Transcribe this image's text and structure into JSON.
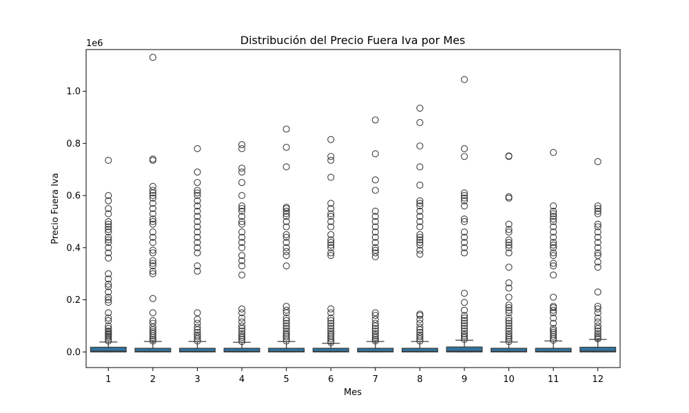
{
  "chart_data": {
    "type": "box",
    "title": "Distribución del Precio Fuera Iva por Mes",
    "xlabel": "Mes",
    "ylabel": "Precio Fuera Iva",
    "scale_label": "1e6",
    "ylim": [
      -60000,
      1160000
    ],
    "yticks": [
      0.0,
      0.2,
      0.4,
      0.6,
      0.8,
      1.0
    ],
    "ytick_labels": [
      "0.0",
      "0.2",
      "0.4",
      "0.6",
      "0.8",
      "1.0"
    ],
    "categories": [
      "1",
      "2",
      "3",
      "4",
      "5",
      "6",
      "7",
      "8",
      "9",
      "10",
      "11",
      "12"
    ],
    "box_color": "#3274a1",
    "grid": false,
    "legend": "none",
    "boxes": [
      {
        "q1": 0,
        "median": 3000,
        "q3": 18000,
        "whislo": 0,
        "whishi": 38000,
        "outliers": [
          42000,
          48000,
          55000,
          60000,
          65000,
          70000,
          75000,
          80000,
          90000,
          100000,
          120000,
          130000,
          150000,
          190000,
          200000,
          210000,
          230000,
          250000,
          260000,
          280000,
          300000,
          360000,
          380000,
          400000,
          420000,
          430000,
          440000,
          460000,
          470000,
          480000,
          490000,
          500000,
          530000,
          550000,
          580000,
          600000,
          735000
        ]
      },
      {
        "q1": 0,
        "median": 2000,
        "q3": 14000,
        "whislo": 0,
        "whishi": 40000,
        "outliers": [
          42000,
          48000,
          55000,
          62000,
          70000,
          78000,
          85000,
          95000,
          110000,
          120000,
          150000,
          205000,
          300000,
          310000,
          330000,
          340000,
          350000,
          380000,
          390000,
          420000,
          440000,
          460000,
          490000,
          500000,
          510000,
          530000,
          550000,
          570000,
          590000,
          600000,
          610000,
          620000,
          635000,
          735000,
          740000,
          1130000
        ]
      },
      {
        "q1": 0,
        "median": 2000,
        "q3": 14000,
        "whislo": 0,
        "whishi": 40000,
        "outliers": [
          42000,
          50000,
          58000,
          65000,
          75000,
          85000,
          95000,
          110000,
          125000,
          150000,
          310000,
          330000,
          380000,
          400000,
          420000,
          440000,
          460000,
          480000,
          500000,
          520000,
          540000,
          560000,
          580000,
          600000,
          610000,
          620000,
          650000,
          690000,
          780000
        ]
      },
      {
        "q1": 0,
        "median": 2000,
        "q3": 14000,
        "whislo": 0,
        "whishi": 37000,
        "outliers": [
          40000,
          48000,
          55000,
          62000,
          70000,
          80000,
          90000,
          100000,
          115000,
          130000,
          150000,
          165000,
          295000,
          330000,
          350000,
          370000,
          400000,
          420000,
          440000,
          460000,
          490000,
          500000,
          520000,
          540000,
          550000,
          560000,
          600000,
          650000,
          690000,
          705000,
          780000,
          795000
        ]
      },
      {
        "q1": 0,
        "median": 2000,
        "q3": 14000,
        "whislo": 0,
        "whishi": 40000,
        "outliers": [
          42000,
          50000,
          58000,
          65000,
          72000,
          80000,
          90000,
          100000,
          110000,
          120000,
          130000,
          150000,
          160000,
          175000,
          330000,
          370000,
          385000,
          400000,
          420000,
          440000,
          450000,
          480000,
          500000,
          520000,
          530000,
          540000,
          550000,
          555000,
          710000,
          785000,
          855000
        ]
      },
      {
        "q1": 0,
        "median": 2000,
        "q3": 14000,
        "whislo": 0,
        "whishi": 33000,
        "outliers": [
          36000,
          42000,
          50000,
          58000,
          65000,
          72000,
          80000,
          90000,
          100000,
          110000,
          120000,
          130000,
          150000,
          165000,
          370000,
          380000,
          400000,
          410000,
          420000,
          430000,
          450000,
          480000,
          500000,
          520000,
          530000,
          550000,
          570000,
          670000,
          735000,
          750000,
          815000
        ]
      },
      {
        "q1": 0,
        "median": 2000,
        "q3": 14000,
        "whislo": 0,
        "whishi": 40000,
        "outliers": [
          42000,
          48000,
          55000,
          62000,
          70000,
          80000,
          90000,
          100000,
          110000,
          125000,
          140000,
          150000,
          365000,
          380000,
          390000,
          400000,
          420000,
          440000,
          460000,
          480000,
          500000,
          520000,
          540000,
          620000,
          660000,
          760000,
          890000
        ]
      },
      {
        "q1": 0,
        "median": 2000,
        "q3": 14000,
        "whislo": 0,
        "whishi": 40000,
        "outliers": [
          42000,
          50000,
          58000,
          65000,
          75000,
          85000,
          95000,
          110000,
          125000,
          140000,
          145000,
          375000,
          390000,
          410000,
          420000,
          430000,
          440000,
          450000,
          480000,
          500000,
          520000,
          540000,
          560000,
          570000,
          580000,
          640000,
          710000,
          790000,
          880000,
          935000
        ]
      },
      {
        "q1": 0,
        "median": 3000,
        "q3": 19000,
        "whislo": 0,
        "whishi": 45000,
        "outliers": [
          48000,
          55000,
          62000,
          70000,
          80000,
          90000,
          100000,
          110000,
          120000,
          130000,
          140000,
          160000,
          190000,
          225000,
          380000,
          400000,
          420000,
          440000,
          460000,
          500000,
          510000,
          560000,
          580000,
          590000,
          600000,
          610000,
          750000,
          780000,
          1045000
        ]
      },
      {
        "q1": 0,
        "median": 2000,
        "q3": 14000,
        "whislo": 0,
        "whishi": 38000,
        "outliers": [
          40000,
          48000,
          55000,
          62000,
          70000,
          80000,
          90000,
          100000,
          110000,
          120000,
          130000,
          150000,
          160000,
          170000,
          180000,
          210000,
          245000,
          265000,
          325000,
          380000,
          400000,
          410000,
          420000,
          430000,
          460000,
          470000,
          490000,
          590000,
          595000,
          750000,
          752000
        ]
      },
      {
        "q1": 0,
        "median": 2000,
        "q3": 14000,
        "whislo": 0,
        "whishi": 42000,
        "outliers": [
          45000,
          52000,
          60000,
          68000,
          75000,
          82000,
          90000,
          110000,
          130000,
          150000,
          160000,
          170000,
          175000,
          210000,
          295000,
          330000,
          340000,
          370000,
          380000,
          400000,
          410000,
          420000,
          440000,
          460000,
          480000,
          500000,
          510000,
          520000,
          530000,
          540000,
          560000,
          765000
        ]
      },
      {
        "q1": 0,
        "median": 3000,
        "q3": 18000,
        "whislo": 0,
        "whishi": 48000,
        "outliers": [
          50000,
          55000,
          62000,
          70000,
          80000,
          90000,
          100000,
          115000,
          130000,
          150000,
          165000,
          175000,
          230000,
          325000,
          345000,
          370000,
          380000,
          400000,
          420000,
          440000,
          460000,
          480000,
          490000,
          530000,
          540000,
          550000,
          560000,
          730000
        ]
      }
    ]
  }
}
